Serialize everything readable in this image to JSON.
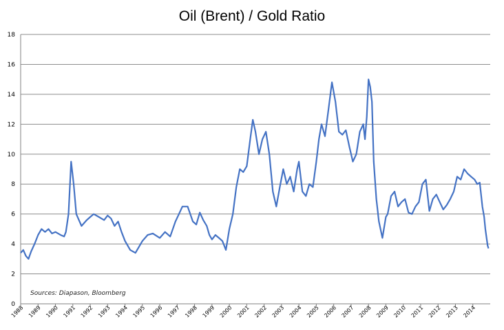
{
  "chart_data": {
    "type": "line",
    "title": "Oil (Brent) / Gold  Ratio",
    "xlabel": "",
    "ylabel": "",
    "ylim": [
      0,
      18
    ],
    "yticks": [
      0,
      2,
      4,
      6,
      8,
      10,
      12,
      14,
      16,
      18
    ],
    "xlim": [
      1988,
      2015
    ],
    "xticks": [
      "1988",
      "1989",
      "1990",
      "1991",
      "1992",
      "1993",
      "1994",
      "1995",
      "1996",
      "1997",
      "1998",
      "1999",
      "2000",
      "2001",
      "2002",
      "2003",
      "2004",
      "2005",
      "2006",
      "2007",
      "2008",
      "2009",
      "2010",
      "2011",
      "2012",
      "2013",
      "2014"
    ],
    "grid": "horizontal",
    "legend": "none",
    "line_color": "#4472C4",
    "annotation": "Sources: Diapason, Bloomberg",
    "series": [
      {
        "x": [
          1988.0,
          1988.15,
          1988.3,
          1988.45,
          1988.6,
          1988.8,
          1989.0,
          1989.2,
          1989.4,
          1989.6,
          1989.8,
          1990.0,
          1990.3,
          1990.5,
          1990.6,
          1990.75,
          1990.9,
          1991.05,
          1991.2,
          1991.5,
          1991.8,
          1992.0,
          1992.2,
          1992.5,
          1992.8,
          1993.0,
          1993.2,
          1993.4,
          1993.6,
          1993.8,
          1994.0,
          1994.3,
          1994.6,
          1995.0,
          1995.3,
          1995.6,
          1996.0,
          1996.3,
          1996.6,
          1996.9,
          1997.1,
          1997.3,
          1997.6,
          1997.9,
          1998.1,
          1998.3,
          1998.5,
          1998.7,
          1998.85,
          1999.0,
          1999.2,
          1999.4,
          1999.6,
          1999.8,
          2000.0,
          2000.2,
          2000.4,
          2000.6,
          2000.8,
          2001.0,
          2001.2,
          2001.35,
          2001.5,
          2001.7,
          2001.9,
          2002.1,
          2002.3,
          2002.5,
          2002.7,
          2002.9,
          2003.1,
          2003.3,
          2003.5,
          2003.7,
          2003.9,
          2004.0,
          2004.2,
          2004.4,
          2004.6,
          2004.8,
          2005.0,
          2005.15,
          2005.3,
          2005.5,
          2005.7,
          2005.9,
          2006.1,
          2006.3,
          2006.5,
          2006.7,
          2006.9,
          2007.1,
          2007.3,
          2007.5,
          2007.7,
          2007.8,
          2007.9,
          2008.0,
          2008.1,
          2008.2,
          2008.3,
          2008.45,
          2008.6,
          2008.8,
          2009.0,
          2009.1,
          2009.3,
          2009.5,
          2009.7,
          2009.9,
          2010.1,
          2010.3,
          2010.5,
          2010.7,
          2010.9,
          2011.1,
          2011.3,
          2011.5,
          2011.7,
          2011.9,
          2012.1,
          2012.3,
          2012.5,
          2012.7,
          2012.9,
          2013.1,
          2013.3,
          2013.5,
          2013.7,
          2013.9,
          2014.1,
          2014.25,
          2014.4,
          2014.55,
          2014.65,
          2014.72,
          2014.78,
          2014.85,
          2014.9
        ],
        "y": [
          3.4,
          3.6,
          3.2,
          3.0,
          3.5,
          4.0,
          4.6,
          5.0,
          4.8,
          5.0,
          4.7,
          4.8,
          4.6,
          4.5,
          4.8,
          6.0,
          9.5,
          8.0,
          6.0,
          5.2,
          5.6,
          5.8,
          6.0,
          5.8,
          5.6,
          5.9,
          5.7,
          5.2,
          5.5,
          4.8,
          4.2,
          3.6,
          3.4,
          4.2,
          4.6,
          4.7,
          4.4,
          4.8,
          4.5,
          5.5,
          6.0,
          6.5,
          6.5,
          5.5,
          5.3,
          6.1,
          5.6,
          5.2,
          4.6,
          4.3,
          4.6,
          4.4,
          4.2,
          3.6,
          5.0,
          6.0,
          7.8,
          9.0,
          8.8,
          9.2,
          11.0,
          12.3,
          11.5,
          10.0,
          11.0,
          11.5,
          10.0,
          7.5,
          6.5,
          7.8,
          9.0,
          8.0,
          8.5,
          7.5,
          9.0,
          9.5,
          7.5,
          7.2,
          8.0,
          7.8,
          9.5,
          11.0,
          12.0,
          11.2,
          13.0,
          14.8,
          13.5,
          11.5,
          11.3,
          11.6,
          10.5,
          9.5,
          10.0,
          11.5,
          12.0,
          11.0,
          12.5,
          15.0,
          14.5,
          13.5,
          9.5,
          7.0,
          5.5,
          4.4,
          5.8,
          6.0,
          7.2,
          7.5,
          6.5,
          6.8,
          7.0,
          6.1,
          6.0,
          6.5,
          6.8,
          8.0,
          8.3,
          6.2,
          7.0,
          7.3,
          6.8,
          6.3,
          6.6,
          7.0,
          7.5,
          8.5,
          8.3,
          9.0,
          8.7,
          8.5,
          8.3,
          8.0,
          8.1,
          6.5,
          5.8,
          5.0,
          4.5,
          3.9,
          3.7
        ]
      }
    ]
  }
}
